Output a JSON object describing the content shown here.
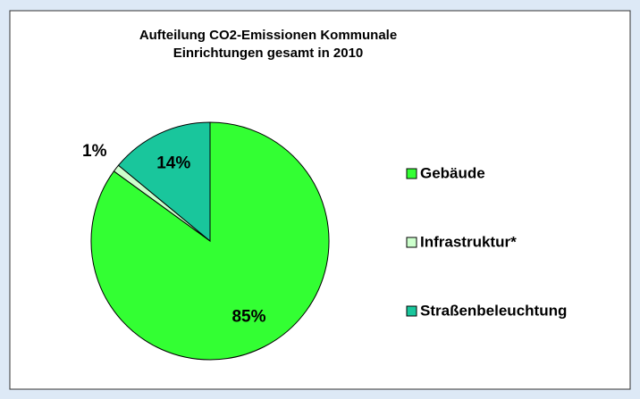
{
  "chart_data": {
    "type": "pie",
    "title": [
      "Aufteilung CO2-Emissionen Kommunale",
      "Einrichtungen gesamt in 2010"
    ],
    "categories": [
      "Gebäude",
      "Infrastruktur*",
      "Straßenbeleuchtung"
    ],
    "values": [
      85,
      1,
      14
    ],
    "value_labels": [
      "85%",
      "1%",
      "14%"
    ],
    "colors": [
      "#33ff33",
      "#ccffcc",
      "#19c69c"
    ],
    "legend": "right"
  }
}
